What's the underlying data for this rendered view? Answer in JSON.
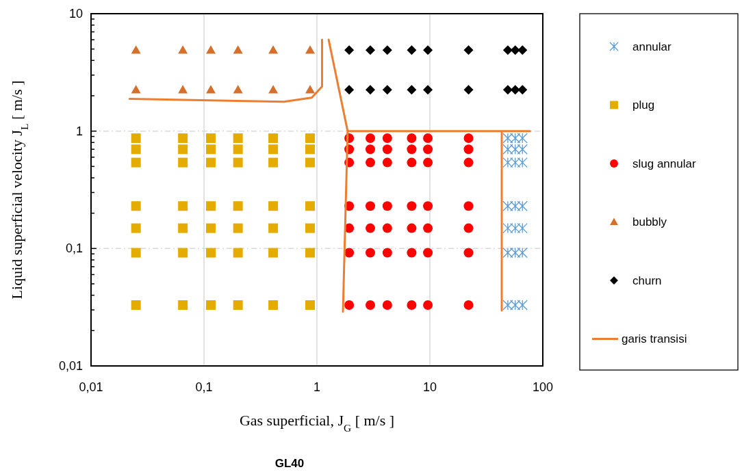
{
  "chart_data": {
    "type": "scatter",
    "title": "GL40",
    "xlabel": "Gas superficial, J$_{G}$ [ m/s ]",
    "ylabel": "Liquid superficial velocity J$_{L}$ [ m/s ]",
    "log": "xy",
    "grid": true,
    "legend": "right",
    "xlim": [
      0.01,
      100
    ],
    "xticks": [
      {
        "value": 0.01,
        "label": "0,01"
      },
      {
        "value": 0.1,
        "label": "0,1"
      },
      1,
      10,
      100
    ],
    "ylim": [
      0.01,
      10
    ],
    "yticks": [
      {
        "value": 0.01,
        "label": "0,01"
      },
      {
        "value": 0.02,
        "label": null
      },
      {
        "value": 0.03,
        "label": null
      },
      {
        "value": 0.04,
        "label": null
      },
      {
        "value": 0.05,
        "label": null
      },
      {
        "value": 0.06,
        "label": null
      },
      {
        "value": 0.07,
        "label": null
      },
      {
        "value": 0.08,
        "label": null
      },
      {
        "value": 0.09,
        "label": null
      },
      {
        "value": 0.1,
        "label": "0,1"
      },
      {
        "value": 0.2,
        "label": null
      },
      {
        "value": 0.3,
        "label": null
      },
      {
        "value": 0.4,
        "label": null
      },
      {
        "value": 0.5,
        "label": null
      },
      {
        "value": 0.6,
        "label": null
      },
      {
        "value": 0.7,
        "label": null
      },
      {
        "value": 0.8,
        "label": null
      },
      {
        "value": 0.9,
        "label": null
      },
      1,
      {
        "value": 2,
        "label": null
      },
      {
        "value": 3,
        "label": null
      },
      {
        "value": 4,
        "label": null
      },
      {
        "value": 5,
        "label": null
      },
      {
        "value": 6,
        "label": null
      },
      {
        "value": 7,
        "label": null
      },
      {
        "value": 8,
        "label": null
      },
      {
        "value": 9,
        "label": null
      },
      10
    ],
    "series": [
      {
        "name": "annular",
        "marker": "cross",
        "color": "#5b9bd5",
        "x": [
          49,
          57,
          66,
          49,
          57,
          66,
          49,
          57,
          66,
          49,
          57,
          66,
          49,
          57,
          66,
          49,
          57,
          66,
          49,
          57,
          66
        ],
        "values": [
          0.87,
          0.87,
          0.87,
          0.7,
          0.7,
          0.7,
          0.54,
          0.54,
          0.54,
          0.23,
          0.23,
          0.23,
          0.149,
          0.149,
          0.149,
          0.092,
          0.092,
          0.092,
          0.033,
          0.033,
          0.033
        ]
      },
      {
        "name": "plug",
        "marker": "square",
        "color": "#e5ac00",
        "x": [
          0.025,
          0.065,
          0.115,
          0.2,
          0.41,
          0.87,
          0.025,
          0.065,
          0.115,
          0.2,
          0.41,
          0.87,
          0.025,
          0.065,
          0.115,
          0.2,
          0.41,
          0.87,
          0.025,
          0.065,
          0.115,
          0.2,
          0.41,
          0.87,
          0.025,
          0.065,
          0.115,
          0.2,
          0.41,
          0.87,
          0.025,
          0.065,
          0.115,
          0.2,
          0.41,
          0.87,
          0.025,
          0.065,
          0.115,
          0.2,
          0.41,
          0.87
        ],
        "values": [
          0.87,
          0.87,
          0.87,
          0.87,
          0.87,
          0.87,
          0.7,
          0.7,
          0.7,
          0.7,
          0.7,
          0.7,
          0.54,
          0.54,
          0.54,
          0.54,
          0.54,
          0.54,
          0.23,
          0.23,
          0.23,
          0.23,
          0.23,
          0.23,
          0.149,
          0.149,
          0.149,
          0.149,
          0.149,
          0.149,
          0.092,
          0.092,
          0.092,
          0.092,
          0.092,
          0.092,
          0.033,
          0.033,
          0.033,
          0.033,
          0.033,
          0.033
        ]
      },
      {
        "name": "slug annular",
        "marker": "circle",
        "color": "#ff0000",
        "x": [
          1.93,
          2.97,
          4.2,
          6.9,
          9.6,
          22,
          1.93,
          2.97,
          4.2,
          6.9,
          9.6,
          22,
          1.93,
          2.97,
          4.2,
          6.9,
          9.6,
          22,
          1.93,
          2.97,
          4.2,
          6.9,
          9.6,
          22,
          1.93,
          2.97,
          4.2,
          6.9,
          9.6,
          22,
          1.93,
          2.97,
          4.2,
          6.9,
          9.6,
          22,
          1.93,
          2.97,
          4.2,
          6.9,
          9.6,
          22
        ],
        "values": [
          0.87,
          0.87,
          0.87,
          0.87,
          0.87,
          0.87,
          0.7,
          0.7,
          0.7,
          0.7,
          0.7,
          0.7,
          0.54,
          0.54,
          0.54,
          0.54,
          0.54,
          0.54,
          0.23,
          0.23,
          0.23,
          0.23,
          0.23,
          0.23,
          0.149,
          0.149,
          0.149,
          0.149,
          0.149,
          0.149,
          0.092,
          0.092,
          0.092,
          0.092,
          0.092,
          0.092,
          0.033,
          0.033,
          0.033,
          0.033,
          0.033,
          0.033
        ]
      },
      {
        "name": "bubbly",
        "marker": "triangle",
        "color": "#d4702c",
        "x": [
          0.025,
          0.065,
          0.115,
          0.2,
          0.41,
          0.87,
          0.025,
          0.065,
          0.115,
          0.2,
          0.41,
          0.87
        ],
        "values": [
          4.9,
          4.9,
          4.9,
          4.9,
          4.9,
          4.9,
          2.25,
          2.25,
          2.25,
          2.25,
          2.25,
          2.25
        ]
      },
      {
        "name": "churn",
        "marker": "diamond",
        "color": "#000000",
        "x": [
          1.93,
          2.97,
          4.2,
          6.9,
          9.6,
          22,
          49,
          57,
          66,
          1.93,
          2.97,
          4.2,
          6.9,
          9.6,
          22,
          49,
          57,
          66
        ],
        "values": [
          4.9,
          4.9,
          4.9,
          4.9,
          4.9,
          4.9,
          4.9,
          4.9,
          4.9,
          2.25,
          2.25,
          2.25,
          2.25,
          2.25,
          2.25,
          2.25,
          2.25,
          2.25
        ]
      },
      {
        "name": "garis transisi",
        "type": "line",
        "marker": "none",
        "line_style": "solid",
        "color": "#ed7d31",
        "x": [
          0.022,
          0.51,
          0.9,
          1.11,
          1.11,
          null,
          1.27,
          1.87,
          77,
          null,
          1.87,
          1.7,
          null,
          43.3,
          43.3
        ],
        "values": [
          1.88,
          1.78,
          1.93,
          2.4,
          6,
          null,
          6,
          1,
          1,
          null,
          1,
          0.029,
          null,
          1,
          0.0296
        ]
      }
    ]
  }
}
